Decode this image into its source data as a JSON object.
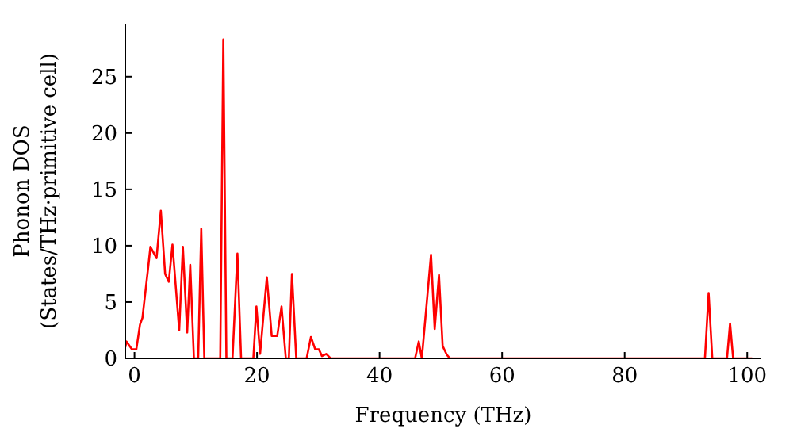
{
  "chart_data": {
    "type": "line",
    "xlabel": "Frequency (THz)",
    "ylabel": "Phonon DOS\n(States/THz·primitive cell)",
    "x": [
      -1.5,
      -1.3,
      -0.4,
      0.3,
      0.9,
      1.3,
      2.2,
      2.6,
      3.6,
      4.3,
      5.0,
      5.6,
      6.2,
      7.3,
      7.9,
      8.6,
      9.1,
      9.7,
      10.4,
      10.9,
      11.4,
      14.0,
      14.5,
      15.0,
      16.0,
      16.8,
      17.4,
      19.4,
      19.9,
      20.5,
      21.6,
      22.4,
      23.3,
      24.0,
      24.7,
      25.2,
      25.7,
      26.4,
      28.1,
      28.8,
      29.5,
      30.1,
      30.6,
      31.3,
      32.0,
      45.8,
      46.4,
      46.9,
      48.4,
      49.0,
      49.7,
      50.3,
      51.0,
      51.5,
      93.1,
      93.7,
      94.3,
      96.7,
      97.2,
      97.7,
      100.8
    ],
    "series": [
      {
        "color": "#ff0000",
        "values": [
          1.0,
          1.5,
          0.8,
          0.8,
          3.0,
          3.6,
          7.9,
          9.9,
          8.9,
          13.1,
          7.5,
          6.8,
          10.1,
          2.5,
          9.9,
          2.3,
          8.3,
          0,
          0,
          11.5,
          0,
          0,
          28.3,
          0,
          0,
          9.3,
          0,
          0,
          4.6,
          0.4,
          7.2,
          2.0,
          2.0,
          4.6,
          0,
          0,
          7.5,
          0,
          0,
          1.9,
          0.8,
          0.8,
          0.2,
          0.4,
          0,
          0,
          1.5,
          0,
          9.2,
          2.6,
          7.4,
          1.1,
          0.3,
          0,
          0,
          5.8,
          0,
          0,
          3.1,
          0,
          0
        ]
      }
    ],
    "xlim": [
      -1.5,
      102.3
    ],
    "ylim": [
      0,
      29.7
    ],
    "xticks": [
      0,
      20,
      40,
      60,
      80,
      100
    ],
    "yticks": [
      0,
      5,
      10,
      15,
      20,
      25
    ],
    "grid": false,
    "legend": false,
    "marker": "none",
    "line_style": "solid"
  }
}
